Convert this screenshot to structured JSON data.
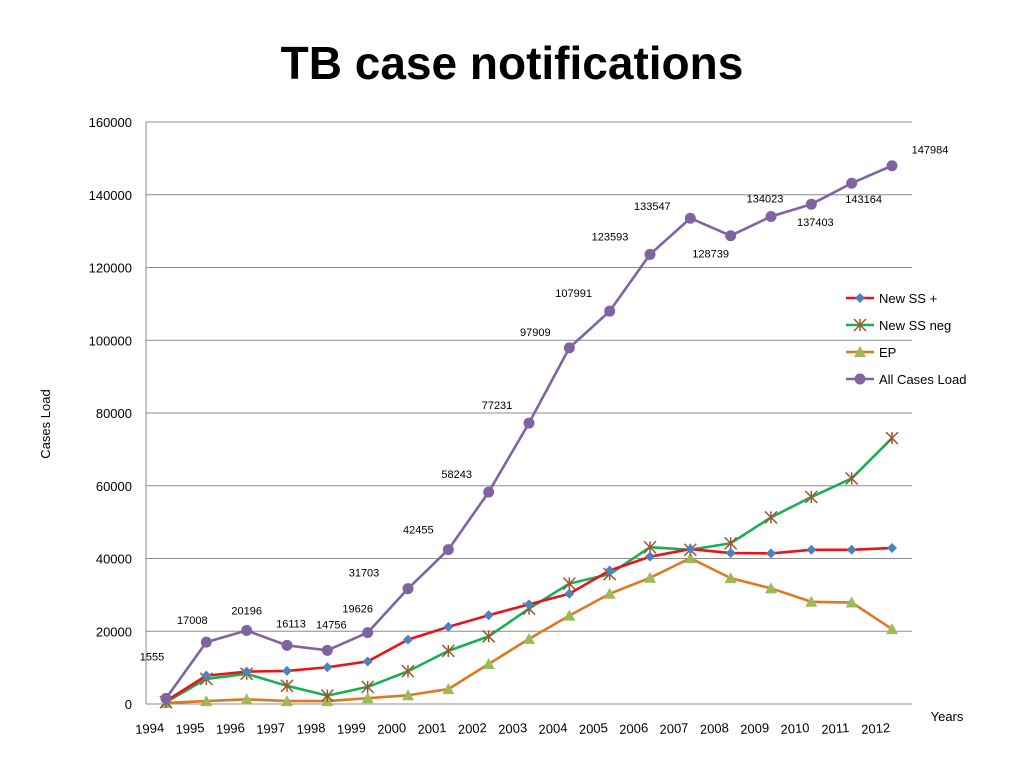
{
  "chart_data": {
    "type": "line",
    "title": "TB case notifications",
    "xlabel": "Years",
    "ylabel": "Cases Load",
    "ylim": [
      0,
      160000
    ],
    "yticks": [
      0,
      20000,
      40000,
      60000,
      80000,
      100000,
      120000,
      140000,
      160000
    ],
    "categories": [
      "1994",
      "1995",
      "1996",
      "1997",
      "1998",
      "1999",
      "2000",
      "2001",
      "2002",
      "2003",
      "2004",
      "2005",
      "2006",
      "2007",
      "2008",
      "2009",
      "2010",
      "2011",
      "2012"
    ],
    "grid": "horizontal",
    "legend_position": "right",
    "series": [
      {
        "name": "New SS +",
        "color": "#E8131B",
        "marker": "diamond",
        "marker_color": "#4F81BD",
        "values": [
          800,
          7800,
          8900,
          9100,
          10100,
          11700,
          17700,
          21200,
          24400,
          27400,
          30300,
          36700,
          40500,
          42600,
          41500,
          41400,
          42400,
          42400,
          42900
        ]
      },
      {
        "name": "New SS neg",
        "color": "#1AAF54",
        "marker": "star",
        "marker_color": "#A0522D",
        "values": [
          500,
          6900,
          8300,
          5000,
          2300,
          4700,
          9000,
          14600,
          18600,
          26200,
          33100,
          35700,
          43100,
          42400,
          44200,
          51300,
          56900,
          62000,
          73100
        ]
      },
      {
        "name": "EP",
        "color": "#E07820",
        "marker": "triangle",
        "marker_color": "#9BBB59",
        "values": [
          300,
          800,
          1300,
          800,
          800,
          1600,
          2400,
          4100,
          11000,
          17900,
          24300,
          30300,
          34700,
          40100,
          34600,
          31800,
          28100,
          27900,
          20600
        ]
      },
      {
        "name": "All Cases Load",
        "color": "#8064A2",
        "marker": "circle",
        "marker_color": "#8064A2",
        "values": [
          1555,
          17008,
          20196,
          16113,
          14756,
          19626,
          31703,
          42455,
          58243,
          77231,
          97909,
          107991,
          123593,
          133547,
          128739,
          134023,
          137403,
          143164,
          147984
        ],
        "labels": [
          "1555",
          "17008",
          "20196",
          "16113",
          "14756",
          "19626",
          "31703",
          "42455",
          "58243",
          "77231",
          "97909",
          "107991",
          "123593",
          "133547",
          "128739",
          "134023",
          "137403",
          "143164",
          "147984"
        ]
      }
    ]
  }
}
